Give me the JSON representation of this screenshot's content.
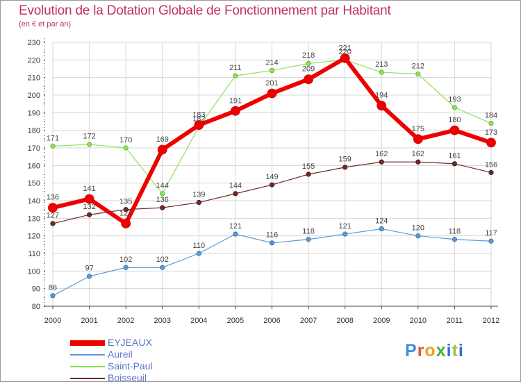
{
  "header": {
    "title": "Evolution de la Dotation Globale de Fonctionnement par Habitant",
    "subtitle": "(en € et par an)"
  },
  "brand": {
    "p1": "P",
    "p2": "r",
    "p3": "o",
    "p4": "x",
    "p5": "i",
    "p6": "t",
    "p7": "i"
  },
  "colors": {
    "EYJEAUX": "#ee0000",
    "Aureil": "#5b9bd5",
    "Saint-Paul": "#8ee05a",
    "Boisseuil": "#6e2b2b",
    "grid": "#d6d6d6",
    "axis": "#444444"
  },
  "chart_data": {
    "type": "line",
    "title": "Evolution de la Dotation Globale de Fonctionnement par Habitant",
    "subtitle": "(en € et par an)",
    "xlabel": "",
    "ylabel": "",
    "x": [
      "2000",
      "2001",
      "2002",
      "2003",
      "2004",
      "2005",
      "2006",
      "2007",
      "2008",
      "2009",
      "2010",
      "2011",
      "2012"
    ],
    "ylim": [
      80,
      230
    ],
    "yticks": [
      80,
      90,
      100,
      110,
      120,
      130,
      140,
      150,
      160,
      170,
      180,
      190,
      200,
      210,
      220,
      230
    ],
    "grid": true,
    "legend_position": "bottom-left",
    "series": [
      {
        "name": "Boisseuil",
        "values": [
          127,
          132,
          135,
          136,
          139,
          144,
          149,
          155,
          159,
          162,
          162,
          161,
          156
        ]
      },
      {
        "name": "Aureil",
        "values": [
          86,
          97,
          102,
          102,
          110,
          121,
          116,
          118,
          121,
          124,
          120,
          118,
          117
        ]
      },
      {
        "name": "Saint-Paul",
        "values": [
          171,
          172,
          170,
          144,
          182,
          211,
          214,
          218,
          220,
          213,
          212,
          193,
          184
        ]
      },
      {
        "name": "EYJEAUX",
        "values": [
          136,
          141,
          127,
          169,
          183,
          191,
          201,
          209,
          221,
          194,
          175,
          180,
          173
        ]
      }
    ],
    "legend": [
      "EYJEAUX",
      "Aureil",
      "Saint-Paul",
      "Boisseuil"
    ]
  }
}
